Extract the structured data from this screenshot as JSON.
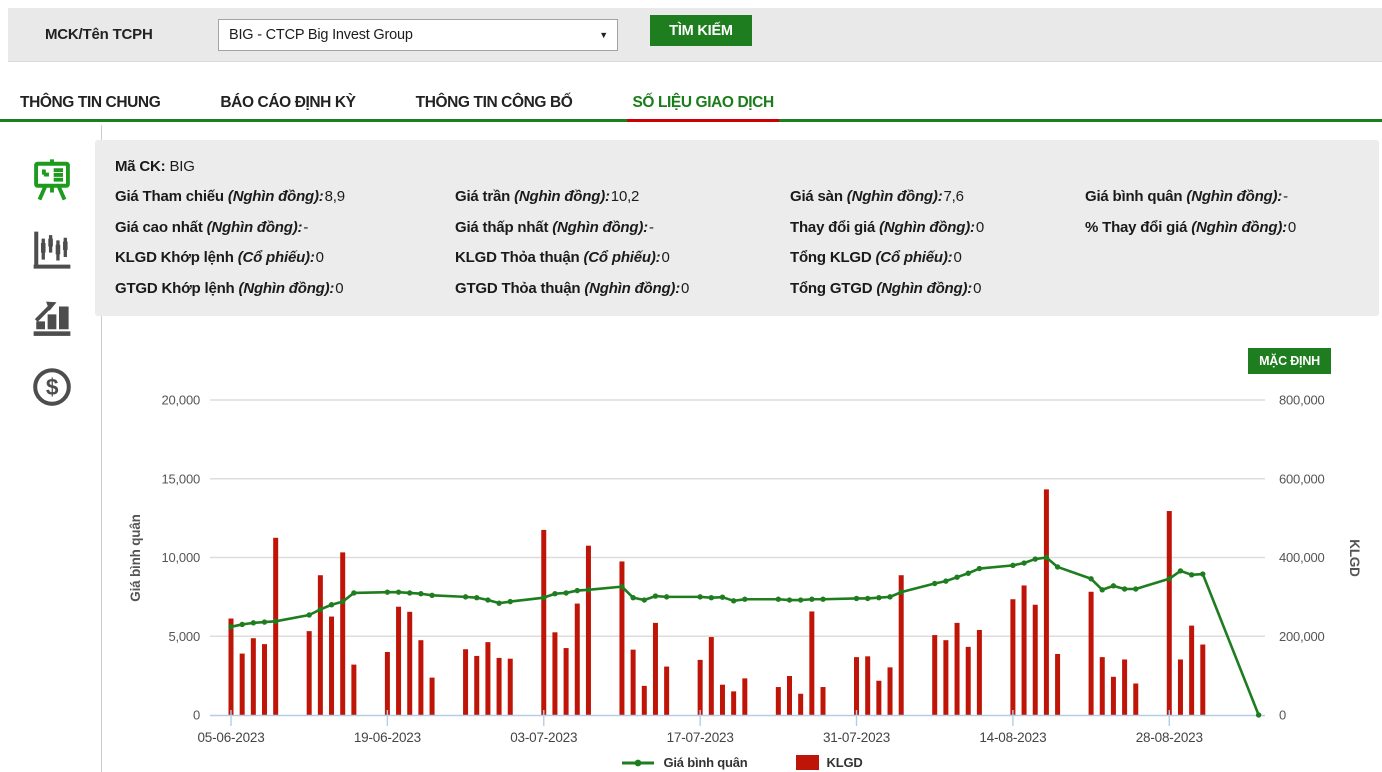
{
  "colors": {
    "accent_green": "#1e7d1e",
    "bar_red": "#bf1508",
    "active_tab_underline": "#cc0000",
    "axis_blue": "#b7cde2",
    "grid_gray": "#dddddd"
  },
  "search_bar": {
    "label": "MCK/Tên TCPH",
    "dropdown_value": "BIG - CTCP Big Invest Group",
    "search_button": "TÌM KIẾM"
  },
  "tabs": [
    {
      "label": "THÔNG TIN CHUNG",
      "active": false
    },
    {
      "label": "BÁO CÁO ĐỊNH KỲ",
      "active": false
    },
    {
      "label": "THÔNG TIN CÔNG BỐ",
      "active": false
    },
    {
      "label": "SỐ LIỆU GIAO DỊCH",
      "active": true
    }
  ],
  "sidebar": {
    "icons": [
      {
        "name": "presentation-board-icon",
        "active": true
      },
      {
        "name": "candlestick-chart-icon",
        "active": false
      },
      {
        "name": "bar-chart-growth-icon",
        "active": false
      },
      {
        "name": "dollar-coin-icon",
        "active": false
      }
    ]
  },
  "info_panel": {
    "ma_ck_label": "Mã CK:",
    "ma_ck_value": "BIG",
    "rows": [
      [
        {
          "label": "Giá Tham chiếu",
          "unit": "(Nghìn đồng):",
          "value": "8,9"
        },
        {
          "label": "Giá trần",
          "unit": "(Nghìn đồng):",
          "value": "10,2"
        },
        {
          "label": "Giá sàn",
          "unit": "(Nghìn đồng):",
          "value": "7,6"
        },
        {
          "label": "Giá bình quân",
          "unit": "(Nghìn đồng):",
          "value": "-"
        }
      ],
      [
        {
          "label": "Giá cao nhất",
          "unit": "(Nghìn đồng):",
          "value": "-"
        },
        {
          "label": "Giá thấp nhất",
          "unit": "(Nghìn đồng):",
          "value": "-"
        },
        {
          "label": "Thay đổi giá",
          "unit": "(Nghìn đồng):",
          "value": "0"
        },
        {
          "label": "% Thay đổi giá",
          "unit": "(Nghìn đồng):",
          "value": "0"
        }
      ],
      [
        {
          "label": "KLGD Khớp lệnh",
          "unit": "(Cổ phiếu):",
          "value": "0"
        },
        {
          "label": "KLGD Thỏa thuận",
          "unit": "(Cổ phiếu):",
          "value": "0"
        },
        {
          "label": "Tổng KLGD",
          "unit": "(Cổ phiếu):",
          "value": "0"
        }
      ],
      [
        {
          "label": "GTGD Khớp lệnh",
          "unit": "(Nghìn đồng):",
          "value": "0"
        },
        {
          "label": "GTGD Thỏa thuận",
          "unit": "(Nghìn đồng):",
          "value": "0"
        },
        {
          "label": "Tổng GTGD",
          "unit": "(Nghìn đồng):",
          "value": "0"
        }
      ]
    ]
  },
  "chart": {
    "default_button_label": "MẶC ĐỊNH"
  },
  "chart_data": {
    "type": "bar+line",
    "title": "",
    "x_unit": "calendar days from 05-06-2023 (weekend gaps, bars only on trading days)",
    "left_axis": {
      "label": "Giá bình quân",
      "range": [
        0,
        20000
      ],
      "tick_values": [
        0,
        5000,
        10000,
        15000,
        20000
      ],
      "tick_labels": [
        "0",
        "5,000",
        "10,000",
        "15,000",
        "20,000"
      ]
    },
    "right_axis": {
      "label": "KLGD",
      "range": [
        0,
        800000
      ],
      "tick_values": [
        0,
        200000,
        400000,
        600000,
        800000
      ],
      "tick_labels": [
        "0",
        "200,000",
        "400,000",
        "600,000",
        "800,000"
      ]
    },
    "x_ticks": [
      {
        "offset": 0,
        "label": "05-06-2023"
      },
      {
        "offset": 14,
        "label": "19-06-2023"
      },
      {
        "offset": 28,
        "label": "03-07-2023"
      },
      {
        "offset": 42,
        "label": "17-07-2023"
      },
      {
        "offset": 56,
        "label": "31-07-2023"
      },
      {
        "offset": 70,
        "label": "14-08-2023"
      },
      {
        "offset": 84,
        "label": "28-08-2023"
      }
    ],
    "legend": [
      {
        "label": "Giá bình quân",
        "type": "line",
        "color": "#1e7d1e"
      },
      {
        "label": "KLGD",
        "type": "bar",
        "color": "#bf1508"
      }
    ],
    "grid": true,
    "points": [
      {
        "date": "05-06-2023",
        "offset": 0,
        "klgd": 245000,
        "avg_price": 5600
      },
      {
        "date": "06-06-2023",
        "offset": 1,
        "klgd": 156000,
        "avg_price": 5750
      },
      {
        "date": "07-06-2023",
        "offset": 2,
        "klgd": 195000,
        "avg_price": 5850
      },
      {
        "date": "08-06-2023",
        "offset": 3,
        "klgd": 180000,
        "avg_price": 5900
      },
      {
        "date": "09-06-2023",
        "offset": 4,
        "klgd": 450000,
        "avg_price": 5950
      },
      {
        "date": "12-06-2023",
        "offset": 7,
        "klgd": 213000,
        "avg_price": 6350
      },
      {
        "date": "13-06-2023",
        "offset": 8,
        "klgd": 355000,
        "avg_price": 6700
      },
      {
        "date": "14-06-2023",
        "offset": 9,
        "klgd": 250000,
        "avg_price": 7000
      },
      {
        "date": "15-06-2023",
        "offset": 10,
        "klgd": 413000,
        "avg_price": 7200
      },
      {
        "date": "16-06-2023",
        "offset": 11,
        "klgd": 128000,
        "avg_price": 7750
      },
      {
        "date": "19-06-2023",
        "offset": 14,
        "klgd": 160000,
        "avg_price": 7800
      },
      {
        "date": "20-06-2023",
        "offset": 15,
        "klgd": 275000,
        "avg_price": 7800
      },
      {
        "date": "21-06-2023",
        "offset": 16,
        "klgd": 262000,
        "avg_price": 7750
      },
      {
        "date": "22-06-2023",
        "offset": 17,
        "klgd": 190000,
        "avg_price": 7700
      },
      {
        "date": "23-06-2023",
        "offset": 18,
        "klgd": 95000,
        "avg_price": 7600
      },
      {
        "date": "26-06-2023",
        "offset": 21,
        "klgd": 167000,
        "avg_price": 7500
      },
      {
        "date": "27-06-2023",
        "offset": 22,
        "klgd": 150000,
        "avg_price": 7450
      },
      {
        "date": "28-06-2023",
        "offset": 23,
        "klgd": 185000,
        "avg_price": 7300
      },
      {
        "date": "29-06-2023",
        "offset": 24,
        "klgd": 145000,
        "avg_price": 7100
      },
      {
        "date": "30-06-2023",
        "offset": 25,
        "klgd": 143000,
        "avg_price": 7200
      },
      {
        "date": "03-07-2023",
        "offset": 28,
        "klgd": 470000,
        "avg_price": 7450
      },
      {
        "date": "04-07-2023",
        "offset": 29,
        "klgd": 210000,
        "avg_price": 7700
      },
      {
        "date": "05-07-2023",
        "offset": 30,
        "klgd": 170000,
        "avg_price": 7750
      },
      {
        "date": "06-07-2023",
        "offset": 31,
        "klgd": 283000,
        "avg_price": 7900
      },
      {
        "date": "07-07-2023",
        "offset": 32,
        "klgd": 430000,
        "avg_price": 7950
      },
      {
        "date": "10-07-2023",
        "offset": 35,
        "klgd": 390000,
        "avg_price": 8150
      },
      {
        "date": "11-07-2023",
        "offset": 36,
        "klgd": 166000,
        "avg_price": 7450
      },
      {
        "date": "12-07-2023",
        "offset": 37,
        "klgd": 74000,
        "avg_price": 7300
      },
      {
        "date": "13-07-2023",
        "offset": 38,
        "klgd": 234000,
        "avg_price": 7550
      },
      {
        "date": "14-07-2023",
        "offset": 39,
        "klgd": 123000,
        "avg_price": 7500
      },
      {
        "date": "17-07-2023",
        "offset": 42,
        "klgd": 140000,
        "avg_price": 7500
      },
      {
        "date": "18-07-2023",
        "offset": 43,
        "klgd": 198000,
        "avg_price": 7450
      },
      {
        "date": "19-07-2023",
        "offset": 44,
        "klgd": 77000,
        "avg_price": 7480
      },
      {
        "date": "20-07-2023",
        "offset": 45,
        "klgd": 60000,
        "avg_price": 7250
      },
      {
        "date": "21-07-2023",
        "offset": 46,
        "klgd": 93000,
        "avg_price": 7350
      },
      {
        "date": "24-07-2023",
        "offset": 49,
        "klgd": 71000,
        "avg_price": 7350
      },
      {
        "date": "25-07-2023",
        "offset": 50,
        "klgd": 99000,
        "avg_price": 7300
      },
      {
        "date": "26-07-2023",
        "offset": 51,
        "klgd": 54000,
        "avg_price": 7300
      },
      {
        "date": "27-07-2023",
        "offset": 52,
        "klgd": 263000,
        "avg_price": 7350
      },
      {
        "date": "28-07-2023",
        "offset": 53,
        "klgd": 71000,
        "avg_price": 7350
      },
      {
        "date": "31-07-2023",
        "offset": 56,
        "klgd": 147000,
        "avg_price": 7400
      },
      {
        "date": "01-08-2023",
        "offset": 57,
        "klgd": 149000,
        "avg_price": 7400
      },
      {
        "date": "02-08-2023",
        "offset": 58,
        "klgd": 87000,
        "avg_price": 7450
      },
      {
        "date": "03-08-2023",
        "offset": 59,
        "klgd": 121000,
        "avg_price": 7500
      },
      {
        "date": "04-08-2023",
        "offset": 60,
        "klgd": 355000,
        "avg_price": 7800
      },
      {
        "date": "07-08-2023",
        "offset": 63,
        "klgd": 203000,
        "avg_price": 8350
      },
      {
        "date": "08-08-2023",
        "offset": 64,
        "klgd": 190000,
        "avg_price": 8500
      },
      {
        "date": "09-08-2023",
        "offset": 65,
        "klgd": 234000,
        "avg_price": 8750
      },
      {
        "date": "10-08-2023",
        "offset": 66,
        "klgd": 173000,
        "avg_price": 9000
      },
      {
        "date": "11-08-2023",
        "offset": 67,
        "klgd": 216000,
        "avg_price": 9300
      },
      {
        "date": "14-08-2023",
        "offset": 70,
        "klgd": 294000,
        "avg_price": 9500
      },
      {
        "date": "15-08-2023",
        "offset": 71,
        "klgd": 329000,
        "avg_price": 9650
      },
      {
        "date": "16-08-2023",
        "offset": 72,
        "klgd": 280000,
        "avg_price": 9900
      },
      {
        "date": "17-08-2023",
        "offset": 73,
        "klgd": 573000,
        "avg_price": 10000
      },
      {
        "date": "18-08-2023",
        "offset": 74,
        "klgd": 155000,
        "avg_price": 9400
      },
      {
        "date": "21-08-2023",
        "offset": 77,
        "klgd": 313000,
        "avg_price": 8650
      },
      {
        "date": "22-08-2023",
        "offset": 78,
        "klgd": 147000,
        "avg_price": 7950
      },
      {
        "date": "23-08-2023",
        "offset": 79,
        "klgd": 97000,
        "avg_price": 8200
      },
      {
        "date": "24-08-2023",
        "offset": 80,
        "klgd": 141000,
        "avg_price": 8000
      },
      {
        "date": "25-08-2023",
        "offset": 81,
        "klgd": 80000,
        "avg_price": 8000
      },
      {
        "date": "28-08-2023",
        "offset": 84,
        "klgd": 518000,
        "avg_price": 8650
      },
      {
        "date": "29-08-2023",
        "offset": 85,
        "klgd": 141000,
        "avg_price": 9150
      },
      {
        "date": "30-08-2023",
        "offset": 86,
        "klgd": 227000,
        "avg_price": 8900
      },
      {
        "date": "31-08-2023",
        "offset": 87,
        "klgd": 179000,
        "avg_price": 8950
      },
      {
        "date": "05-09-2023",
        "offset": 92,
        "klgd": null,
        "avg_price": 0
      }
    ]
  }
}
